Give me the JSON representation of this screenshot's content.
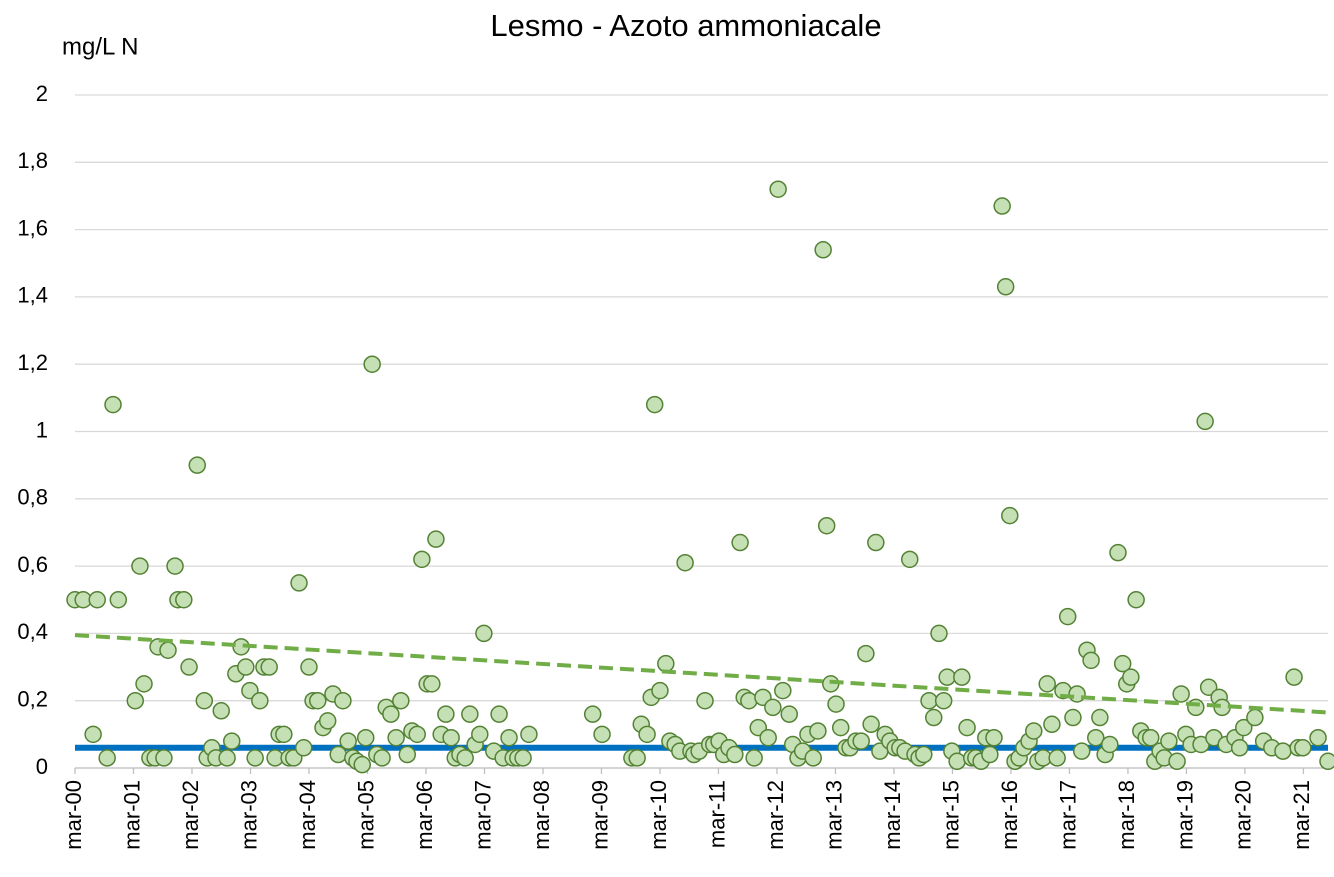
{
  "chart_data": {
    "type": "scatter",
    "title": "Lesmo - Azoto ammoniacale",
    "y_label": "mg/L N",
    "x": [
      2000.17,
      2000.31,
      2000.48,
      2000.55,
      2000.72,
      2000.82,
      2000.91,
      2001.2,
      2001.28,
      2001.35,
      2001.45,
      2001.54,
      2001.59,
      2001.69,
      2001.76,
      2001.88,
      2001.93,
      2002.03,
      2002.12,
      2002.26,
      2002.38,
      2002.43,
      2002.51,
      2002.58,
      2002.67,
      2002.77,
      2002.85,
      2002.92,
      2003.01,
      2003.09,
      2003.16,
      2003.25,
      2003.33,
      2003.4,
      2003.49,
      2003.59,
      2003.66,
      2003.74,
      2003.83,
      2003.91,
      2004.0,
      2004.08,
      2004.17,
      2004.24,
      2004.32,
      2004.41,
      2004.49,
      2004.58,
      2004.67,
      2004.75,
      2004.84,
      2004.92,
      2004.99,
      2005.08,
      2005.14,
      2005.25,
      2005.33,
      2005.42,
      2005.49,
      2005.57,
      2005.66,
      2005.74,
      2005.85,
      2005.93,
      2006.02,
      2006.1,
      2006.19,
      2006.27,
      2006.34,
      2006.43,
      2006.51,
      2006.6,
      2006.67,
      2006.75,
      2006.84,
      2006.92,
      2007.01,
      2007.09,
      2007.16,
      2007.33,
      2007.42,
      2007.49,
      2007.59,
      2007.66,
      2007.74,
      2007.83,
      2007.93,
      2009.02,
      2009.18,
      2009.69,
      2009.78,
      2009.85,
      2009.95,
      2010.02,
      2010.08,
      2010.17,
      2010.27,
      2010.34,
      2010.43,
      2010.51,
      2010.6,
      2010.7,
      2010.75,
      2010.84,
      2010.94,
      2011.02,
      2011.09,
      2011.18,
      2011.26,
      2011.35,
      2011.45,
      2011.54,
      2011.61,
      2011.69,
      2011.78,
      2011.85,
      2011.93,
      2012.02,
      2012.1,
      2012.19,
      2012.27,
      2012.38,
      2012.44,
      2012.53,
      2012.61,
      2012.7,
      2012.79,
      2012.87,
      2012.96,
      2013.02,
      2013.09,
      2013.18,
      2013.26,
      2013.35,
      2013.42,
      2013.52,
      2013.61,
      2013.69,
      2013.78,
      2013.86,
      2013.93,
      2014.02,
      2014.1,
      2014.19,
      2014.27,
      2014.36,
      2014.44,
      2014.53,
      2014.6,
      2014.68,
      2014.77,
      2014.85,
      2014.94,
      2015.02,
      2015.08,
      2015.16,
      2015.25,
      2015.33,
      2015.42,
      2015.5,
      2015.57,
      2015.66,
      2015.74,
      2015.81,
      2015.88,
      2016.02,
      2016.08,
      2016.15,
      2016.24,
      2016.31,
      2016.39,
      2016.48,
      2016.56,
      2016.63,
      2016.72,
      2016.79,
      2016.87,
      2016.96,
      2017.06,
      2017.14,
      2017.23,
      2017.3,
      2017.38,
      2017.47,
      2017.54,
      2017.62,
      2017.69,
      2017.78,
      2017.86,
      2018.0,
      2018.08,
      2018.15,
      2018.22,
      2018.31,
      2018.39,
      2018.48,
      2018.56,
      2018.63,
      2018.72,
      2018.79,
      2018.87,
      2019.01,
      2019.08,
      2019.16,
      2019.25,
      2019.33,
      2019.42,
      2019.49,
      2019.55,
      2019.64,
      2019.73,
      2019.78,
      2019.85,
      2020.0,
      2020.08,
      2020.15,
      2020.34,
      2020.49,
      2020.63,
      2020.82,
      2021.01,
      2021.08,
      2021.16,
      2021.42,
      2021.59
    ],
    "values": [
      0.5,
      0.5,
      0.1,
      0.5,
      0.03,
      1.08,
      0.5,
      0.2,
      0.6,
      0.25,
      0.03,
      0.03,
      0.36,
      0.03,
      0.35,
      0.6,
      0.5,
      0.5,
      0.3,
      0.9,
      0.2,
      0.03,
      0.06,
      0.03,
      0.17,
      0.03,
      0.08,
      0.28,
      0.36,
      0.3,
      0.23,
      0.03,
      0.2,
      0.3,
      0.3,
      0.03,
      0.1,
      0.1,
      0.03,
      0.03,
      0.55,
      0.06,
      0.3,
      0.2,
      0.2,
      0.12,
      0.14,
      0.22,
      0.04,
      0.2,
      0.08,
      0.03,
      0.02,
      0.01,
      0.09,
      1.2,
      0.04,
      0.03,
      0.18,
      0.16,
      0.09,
      0.2,
      0.04,
      0.11,
      0.1,
      0.62,
      0.25,
      0.25,
      0.68,
      0.1,
      0.16,
      0.09,
      0.03,
      0.04,
      0.03,
      0.16,
      0.07,
      0.1,
      0.4,
      0.05,
      0.16,
      0.03,
      0.09,
      0.03,
      0.03,
      0.03,
      0.1,
      0.16,
      0.1,
      0.03,
      0.03,
      0.13,
      0.1,
      0.21,
      1.08,
      0.23,
      0.31,
      0.08,
      0.07,
      0.05,
      0.61,
      0.05,
      0.04,
      0.05,
      0.2,
      0.07,
      0.07,
      0.08,
      0.04,
      0.06,
      0.04,
      0.67,
      0.21,
      0.2,
      0.03,
      0.12,
      0.21,
      0.09,
      0.18,
      1.72,
      0.23,
      0.16,
      0.07,
      0.03,
      0.05,
      0.1,
      0.03,
      0.11,
      1.54,
      0.72,
      0.25,
      0.19,
      0.12,
      0.06,
      0.06,
      0.08,
      0.08,
      0.34,
      0.13,
      0.67,
      0.05,
      0.1,
      0.08,
      0.06,
      0.06,
      0.05,
      0.62,
      0.04,
      0.03,
      0.04,
      0.2,
      0.15,
      0.4,
      0.2,
      0.27,
      0.05,
      0.02,
      0.27,
      0.12,
      0.03,
      0.03,
      0.02,
      0.09,
      0.04,
      0.09,
      1.67,
      1.43,
      0.75,
      0.02,
      0.03,
      0.06,
      0.08,
      0.11,
      0.02,
      0.03,
      0.25,
      0.13,
      0.03,
      0.23,
      0.45,
      0.15,
      0.22,
      0.05,
      0.35,
      0.32,
      0.09,
      0.15,
      0.04,
      0.07,
      0.64,
      0.31,
      0.25,
      0.27,
      0.5,
      0.11,
      0.09,
      0.09,
      0.02,
      0.05,
      0.03,
      0.08,
      0.02,
      0.22,
      0.1,
      0.07,
      0.18,
      0.07,
      1.03,
      0.24,
      0.09,
      0.21,
      0.18,
      0.07,
      0.09,
      0.06,
      0.12,
      0.15,
      0.08,
      0.06,
      0.05,
      0.27,
      0.06,
      0.06,
      0.09,
      0.02
    ],
    "color": "#c5e0b4",
    "edge_color": "#548235",
    "lines": [
      {
        "x": [
          2000.17,
          2021.59
        ],
        "values": [
          0.06,
          0.06
        ],
        "color": "#0070c0",
        "dashed": false
      },
      {
        "x": [
          2000.17,
          2021.59
        ],
        "values": [
          0.395,
          0.165
        ],
        "color": "#70ad47",
        "dashed": true
      }
    ],
    "xlim": [
      2000.17,
      2021.59
    ],
    "ylim": [
      0,
      2
    ],
    "xticks": [
      {
        "value": 2000.17,
        "label": "mar-00"
      },
      {
        "value": 2001.17,
        "label": "mar-01"
      },
      {
        "value": 2002.17,
        "label": "mar-02"
      },
      {
        "value": 2003.17,
        "label": "mar-03"
      },
      {
        "value": 2004.17,
        "label": "mar-04"
      },
      {
        "value": 2005.17,
        "label": "mar-05"
      },
      {
        "value": 2006.17,
        "label": "mar-06"
      },
      {
        "value": 2007.17,
        "label": "mar-07"
      },
      {
        "value": 2008.17,
        "label": "mar-08"
      },
      {
        "value": 2009.17,
        "label": "mar-09"
      },
      {
        "value": 2010.17,
        "label": "mar-10"
      },
      {
        "value": 2011.17,
        "label": "mar-11"
      },
      {
        "value": 2012.17,
        "label": "mar-12"
      },
      {
        "value": 2013.17,
        "label": "mar-13"
      },
      {
        "value": 2014.17,
        "label": "mar-14"
      },
      {
        "value": 2015.17,
        "label": "mar-15"
      },
      {
        "value": 2016.17,
        "label": "mar-16"
      },
      {
        "value": 2017.17,
        "label": "mar-17"
      },
      {
        "value": 2018.17,
        "label": "mar-18"
      },
      {
        "value": 2019.17,
        "label": "mar-19"
      },
      {
        "value": 2020.17,
        "label": "mar-20"
      },
      {
        "value": 2021.17,
        "label": "mar-21"
      }
    ],
    "yticks": [
      0,
      {
        "value": 0.2,
        "label": "0,2"
      },
      {
        "value": 0.4,
        "label": "0,4"
      },
      {
        "value": 0.6,
        "label": "0,6"
      },
      {
        "value": 0.8,
        "label": "0,8"
      },
      1,
      {
        "value": 1.2,
        "label": "1,2"
      },
      {
        "value": 1.4,
        "label": "1,4"
      },
      {
        "value": 1.6,
        "label": "1,6"
      },
      {
        "value": 1.8,
        "label": "1,8"
      },
      2
    ],
    "grid": true
  }
}
